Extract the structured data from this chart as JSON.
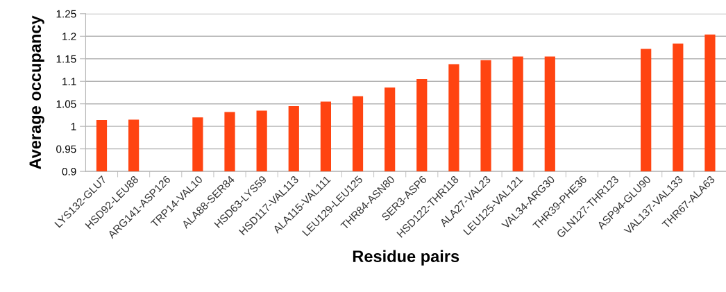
{
  "chart_data": {
    "type": "bar",
    "xlabel": "Residue pairs",
    "ylabel": "Average occupancy",
    "categories": [
      "LYS132-GLU7",
      "HSD92-LEU88",
      "ARG141-ASP126",
      "TRP14-VAL10",
      "ALA88-SER84",
      "HSD63-LYS59",
      "HSD117-VAL113",
      "ALA115-VAL111",
      "LEU129-LEU125",
      "THR84-ASN80",
      "SER3-ASP6",
      "HSD122-THR118",
      "ALA27-VAL23",
      "LEU125-VAL121",
      "VAL34-ARG30",
      "THR39-PHE36",
      "GLN127-THR123",
      "ASP94-GLU90",
      "VAL137-VAL133",
      "THR67-ALA63"
    ],
    "values": [
      1.014,
      1.015,
      null,
      1.02,
      1.032,
      1.035,
      1.045,
      1.055,
      1.067,
      1.086,
      1.105,
      1.138,
      1.147,
      1.155,
      1.155,
      null,
      null,
      1.172,
      1.184,
      1.204
    ],
    "color": "#ff4411",
    "ylim": [
      0.9,
      1.25
    ],
    "yticks": [
      0.9,
      0.95,
      1,
      1.05,
      1.1,
      1.15,
      1.2,
      1.25
    ],
    "grid": "y",
    "legend": false
  }
}
